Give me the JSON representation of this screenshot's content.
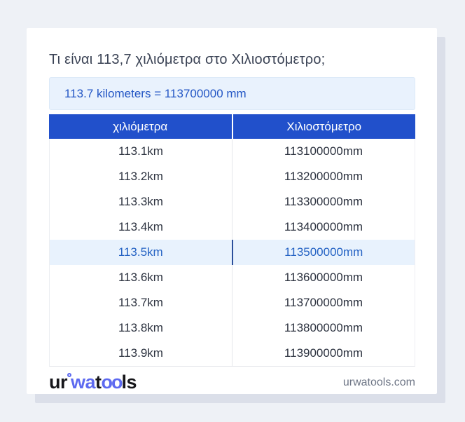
{
  "page": {
    "title": "Τι είναι 113,7 χιλιόμετρα στο Χιλιοστόμετρο;",
    "answer": "113.7 kilometers = 113700000 mm"
  },
  "table": {
    "headers": [
      "χιλιόμετρα",
      "Χιλιοστόμετρο"
    ],
    "rows": [
      {
        "km": "113.1km",
        "mm": "113100000mm",
        "highlighted": false
      },
      {
        "km": "113.2km",
        "mm": "113200000mm",
        "highlighted": false
      },
      {
        "km": "113.3km",
        "mm": "113300000mm",
        "highlighted": false
      },
      {
        "km": "113.4km",
        "mm": "113400000mm",
        "highlighted": false
      },
      {
        "km": "113.5km",
        "mm": "113500000mm",
        "highlighted": true
      },
      {
        "km": "113.6km",
        "mm": "113600000mm",
        "highlighted": false
      },
      {
        "km": "113.7km",
        "mm": "113700000mm",
        "highlighted": false
      },
      {
        "km": "113.8km",
        "mm": "113800000mm",
        "highlighted": false
      },
      {
        "km": "113.9km",
        "mm": "113900000mm",
        "highlighted": false
      }
    ]
  },
  "footer": {
    "logo_parts": [
      {
        "text": "ur",
        "style": "dark"
      },
      {
        "text": "",
        "style": "ring"
      },
      {
        "text": "wa",
        "style": "blue"
      },
      {
        "text": "t",
        "style": "dark"
      },
      {
        "text": "oo",
        "style": "blue-tight"
      },
      {
        "text": "ls",
        "style": "dark"
      }
    ],
    "domain": "urwatools.com"
  },
  "colors": {
    "page_background": "#eef1f6",
    "card_background": "#ffffff",
    "card_shadow": "#dbdfe9",
    "header_blue": "#2150cb",
    "answer_background": "#e9f2fd",
    "answer_text": "#2457c5",
    "highlight_row_background": "#e8f2fd",
    "highlight_row_text": "#2563c4",
    "highlight_divider": "#2b4f9b",
    "row_text": "#2d3340",
    "title_text": "#3b4355",
    "domain_text": "#6e7686",
    "logo_blue": "#5d6af0"
  }
}
